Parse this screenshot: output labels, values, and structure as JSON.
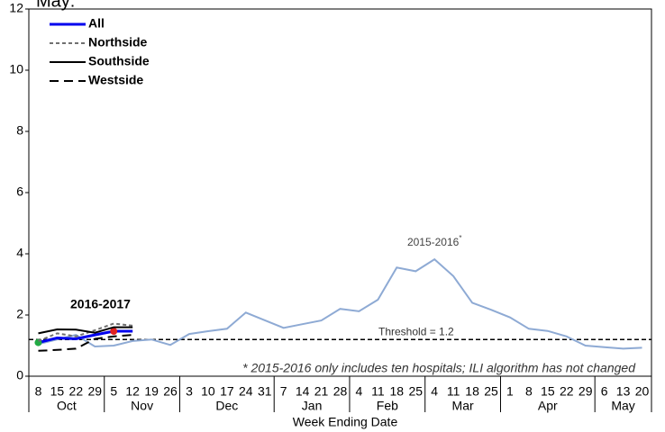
{
  "chart_data": {
    "type": "line",
    "title": "May:",
    "xlabel": "Week Ending Date",
    "categories": [
      "8",
      "15",
      "22",
      "29",
      "5",
      "12",
      "19",
      "26",
      "3",
      "10",
      "17",
      "24",
      "31",
      "7",
      "14",
      "21",
      "28",
      "4",
      "11",
      "18",
      "25",
      "4",
      "11",
      "18",
      "25",
      "1",
      "8",
      "15",
      "22",
      "29",
      "6",
      "13",
      "20"
    ],
    "month_groups": [
      {
        "label": "Oct",
        "span": 4
      },
      {
        "label": "Nov",
        "span": 4
      },
      {
        "label": "Dec",
        "span": 5
      },
      {
        "label": "Jan",
        "span": 4
      },
      {
        "label": "Feb",
        "span": 4
      },
      {
        "label": "Mar",
        "span": 4
      },
      {
        "label": "Apr",
        "span": 5
      },
      {
        "label": "May",
        "span": 3
      }
    ],
    "ylim": [
      0,
      12
    ],
    "yticks": [
      0,
      2,
      4,
      6,
      8,
      10,
      12
    ],
    "grid": false,
    "legend": "upper left",
    "series": [
      {
        "name": "2015-2016",
        "name_note": "*",
        "color": "#8eaad4",
        "width": 2,
        "dash": "none",
        "legend": false,
        "values": [
          1.05,
          1.2,
          1.35,
          0.97,
          1.0,
          1.15,
          1.2,
          1.02,
          1.38,
          1.47,
          1.55,
          2.08,
          1.83,
          1.58,
          1.7,
          1.82,
          2.2,
          2.12,
          2.5,
          3.55,
          3.43,
          3.82,
          3.27,
          2.4,
          2.17,
          1.92,
          1.55,
          1.48,
          1.3,
          1.0,
          0.95,
          0.9,
          0.93
        ]
      },
      {
        "name": "All",
        "color": "#0000ee",
        "width": 3,
        "dash": "none",
        "legend": true,
        "markers": [
          {
            "index": 0,
            "color": "#22aa44"
          },
          {
            "index": 4,
            "color": "#e02020"
          }
        ],
        "values": [
          1.1,
          1.25,
          1.22,
          1.35,
          1.47,
          1.47,
          null,
          null,
          null,
          null,
          null,
          null,
          null,
          null,
          null,
          null,
          null,
          null,
          null,
          null,
          null,
          null,
          null,
          null,
          null,
          null,
          null,
          null,
          null,
          null,
          null,
          null,
          null
        ]
      },
      {
        "name": "Northside",
        "color": "#707070",
        "width": 2,
        "dash": "4,3",
        "legend": true,
        "values": [
          1.15,
          1.4,
          1.3,
          1.5,
          1.72,
          1.65,
          null,
          null,
          null,
          null,
          null,
          null,
          null,
          null,
          null,
          null,
          null,
          null,
          null,
          null,
          null,
          null,
          null,
          null,
          null,
          null,
          null,
          null,
          null,
          null,
          null,
          null,
          null
        ]
      },
      {
        "name": "Southside",
        "color": "#000000",
        "width": 2,
        "dash": "none",
        "legend": true,
        "values": [
          1.4,
          1.53,
          1.52,
          1.42,
          1.6,
          1.6,
          null,
          null,
          null,
          null,
          null,
          null,
          null,
          null,
          null,
          null,
          null,
          null,
          null,
          null,
          null,
          null,
          null,
          null,
          null,
          null,
          null,
          null,
          null,
          null,
          null,
          null,
          null
        ]
      },
      {
        "name": "Westside",
        "color": "#000000",
        "width": 2,
        "dash": "10,6",
        "legend": true,
        "values": [
          0.83,
          0.86,
          0.9,
          1.22,
          1.3,
          1.35,
          null,
          null,
          null,
          null,
          null,
          null,
          null,
          null,
          null,
          null,
          null,
          null,
          null,
          null,
          null,
          null,
          null,
          null,
          null,
          null,
          null,
          null,
          null,
          null,
          null,
          null,
          null
        ]
      }
    ],
    "threshold": {
      "value": 1.2,
      "label": "Threshold = 1.2"
    },
    "annotations": [
      "2016-2017"
    ],
    "footnote": "* 2015-2016 only includes ten hospitals; ILI algorithm has not changed"
  }
}
